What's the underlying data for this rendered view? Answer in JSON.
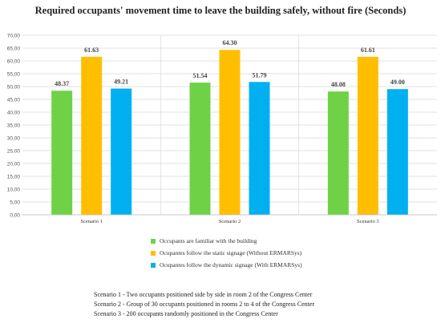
{
  "chart_data": {
    "type": "bar",
    "title": "Required occupants' movement time to leave the building safely, without fire (Seconds)",
    "categories": [
      "Scenario 1",
      "Scenario 2",
      "Scenario 3"
    ],
    "series": [
      {
        "name": "Occupants are familiar with the building",
        "color": "#6fd246",
        "values": [
          48.37,
          51.54,
          48.08
        ],
        "labels": [
          "48.37",
          "51.54",
          "48.08"
        ]
      },
      {
        "name": "Ocupantes follow the static signage (Without ERMARSys)",
        "color": "#ffbf00",
        "values": [
          61.63,
          64.3,
          61.61
        ],
        "labels": [
          "61.63",
          "64.30",
          "61.61"
        ]
      },
      {
        "name": "Ocupantes follow the dynamic signage (With ERMARSys)",
        "color": "#00b0f0",
        "values": [
          49.21,
          51.79,
          49.0
        ],
        "labels": [
          "49.21",
          "51.79",
          "49.00"
        ]
      }
    ],
    "ylim": [
      0,
      70
    ],
    "yticks": [
      "0,00",
      "5,00",
      "10,00",
      "15,00",
      "20,00",
      "25,00",
      "30,00",
      "35,00",
      "40,00",
      "45,00",
      "50,00",
      "55,00",
      "60,00",
      "65,00",
      "70,00"
    ],
    "grid": true,
    "legend_position": "bottom"
  },
  "notes": [
    "Scenario 1 - Two occupants positioned side by side in room 2 of the Congress Center",
    "Scenario 2 - Group of 30 occupants positioned in rooms 2 to 4 of the Congress Center",
    "Scenario 3 - 200 occupants randomly positioned in the Congress Center"
  ]
}
